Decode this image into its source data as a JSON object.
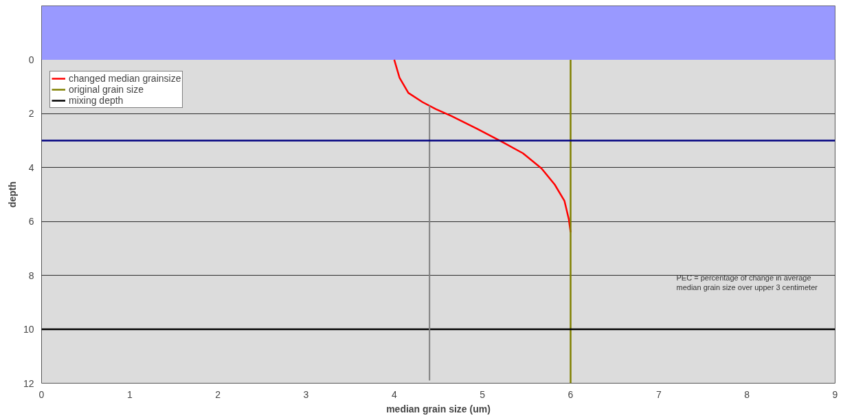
{
  "chart_data": {
    "type": "line",
    "xlabel": "median grain size (um)",
    "ylabel": "depth",
    "xlim": [
      0,
      9
    ],
    "xticks": [
      0,
      1,
      2,
      3,
      4,
      5,
      6,
      7,
      8,
      9
    ],
    "ylim": [
      12,
      -2
    ],
    "yticks": [
      0,
      2,
      4,
      6,
      8,
      10,
      12
    ],
    "grid": "y",
    "legend": "top left",
    "series": [
      {
        "name": "changed median grainsize",
        "color": "#ff0000",
        "x": [
          4.0,
          4.06,
          4.16,
          4.32,
          4.47,
          4.65,
          4.94,
          5.22,
          5.46,
          5.67,
          5.82,
          5.93,
          5.98,
          6.0
        ],
        "values": [
          0,
          0.67,
          1.23,
          1.57,
          1.83,
          2.09,
          2.56,
          3.04,
          3.47,
          4.03,
          4.63,
          5.23,
          5.92,
          6.4
        ]
      },
      {
        "name": "original grain size",
        "color": "#808000",
        "x": [
          6,
          6
        ],
        "values": [
          0,
          12
        ]
      },
      {
        "name": "mixing depth",
        "color": "#000000",
        "x": [
          0,
          9
        ],
        "values": [
          10,
          10
        ]
      },
      {
        "color": "#808080",
        "x": [
          4.4,
          4.4
        ],
        "values": [
          1.7,
          11.9
        ]
      }
    ],
    "ref_lines": [
      {
        "axis": "y",
        "value": 3,
        "color": "#000080"
      }
    ],
    "bands": [
      {
        "axis": "y",
        "from": -2,
        "to": 0,
        "color": "#9999ff"
      }
    ],
    "annotations": [
      "PEC = percentage of change in average\nmedian grain size over upper 3 centimeter"
    ]
  }
}
